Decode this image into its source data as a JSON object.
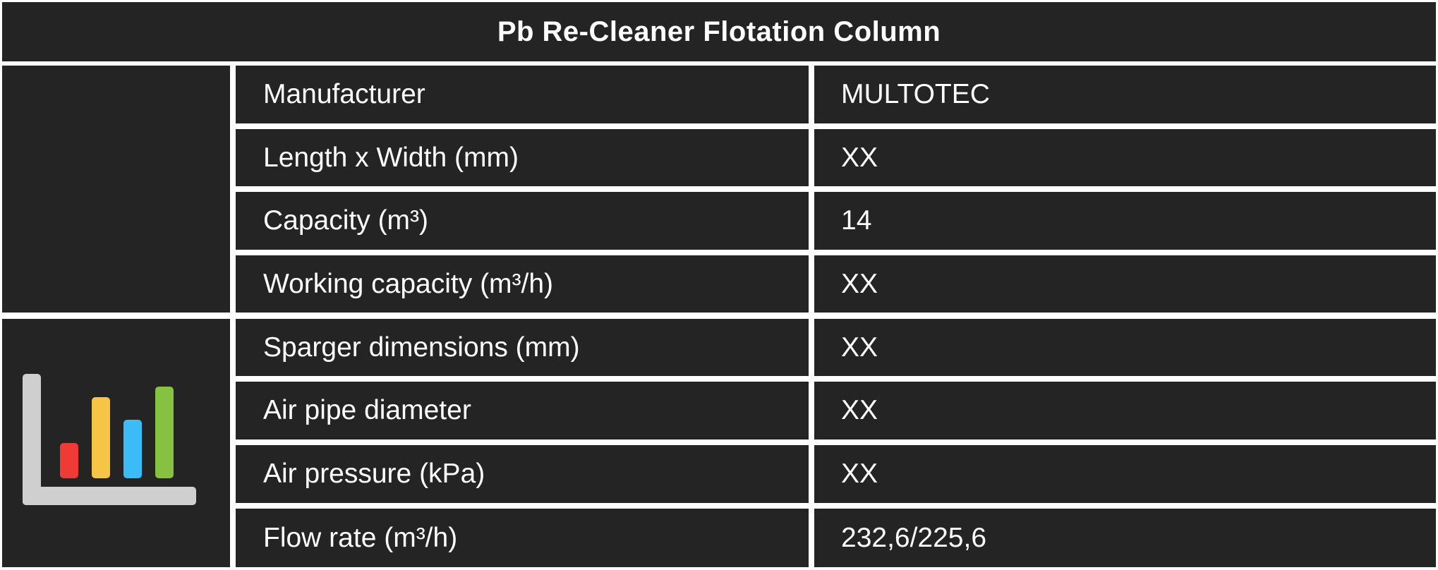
{
  "table": {
    "title": "Pb Re-Cleaner Flotation Column",
    "rows": [
      {
        "label": "Manufacturer",
        "value": "MULTOTEC"
      },
      {
        "label": "Length x Width (mm)",
        "value": "XX"
      },
      {
        "label": "Capacity (m³)",
        "value": "14"
      },
      {
        "label": "Working capacity (m³/h)",
        "value": "XX"
      },
      {
        "label": "Sparger dimensions (mm)",
        "value": "XX"
      },
      {
        "label": "Air pipe diameter",
        "value": "XX"
      },
      {
        "label": "Air pressure (kPa)",
        "value": "XX"
      },
      {
        "label": "Flow rate (m³/h)",
        "value": "232,6/225,6"
      }
    ]
  },
  "icon": {
    "name": "bar-chart-icon",
    "bar_colors": [
      "#f03a35",
      "#f7c545",
      "#3bbcf7",
      "#86c142"
    ],
    "axis_color": "#cfcfcf"
  }
}
